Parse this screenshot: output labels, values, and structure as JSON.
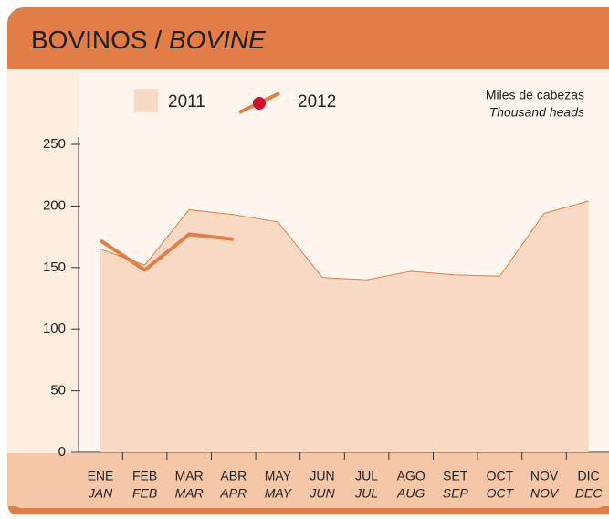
{
  "chart_data": {
    "type": "area_line",
    "title": "BOVINOS /",
    "title_en": "BOVINE",
    "annotation": "Miles de cabezas",
    "annotation_en": "Thousand heads",
    "categories": [
      "ENE",
      "FEB",
      "MAR",
      "ABR",
      "MAY",
      "JUN",
      "JUL",
      "AGO",
      "SET",
      "OCT",
      "NOV",
      "DIC"
    ],
    "categories_en": [
      "JAN",
      "FEB",
      "MAR",
      "APR",
      "MAY",
      "JUN",
      "JUL",
      "AUG",
      "SEP",
      "OCT",
      "NOV",
      "DEC"
    ],
    "series": [
      {
        "name": "2011",
        "kind": "area",
        "color": "#f8d9c3",
        "line_color": "#e27d47",
        "values": [
          165,
          152,
          197,
          193,
          187,
          142,
          140,
          147,
          144,
          143,
          194,
          204
        ]
      },
      {
        "name": "2012",
        "kind": "line",
        "color": "#e27d47",
        "marker_color": "#d2102b",
        "values": [
          172,
          148,
          177,
          173,
          null,
          null,
          null,
          null,
          null,
          null,
          null,
          null
        ]
      }
    ],
    "ylim": [
      0,
      250
    ],
    "yticks": [
      0,
      50,
      100,
      150,
      200,
      250
    ]
  }
}
